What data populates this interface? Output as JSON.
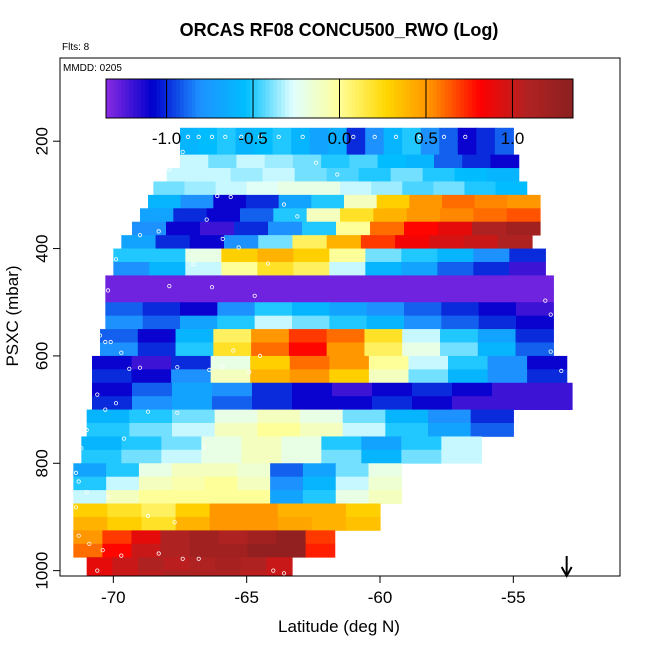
{
  "chart_data": {
    "type": "heatmap",
    "title": "ORCAS RF08 CONCU500_RWO (Log)",
    "flights_note": "Flts: 8",
    "date_note": "MMDD: 0205",
    "xlabel": "Latitude (deg N)",
    "ylabel": "PSXC (mbar)",
    "xlim": [
      -72,
      -51
    ],
    "ylim": [
      1010,
      45
    ],
    "x_ticks": [
      -70,
      -65,
      -60,
      -55
    ],
    "x_tick_labels": [
      "-70",
      "-65",
      "-60",
      "-55"
    ],
    "y_ticks": [
      200,
      400,
      600,
      800,
      1000
    ],
    "y_tick_labels": [
      "200",
      "400",
      "600",
      "800",
      "1000"
    ],
    "colorbar": {
      "range": [
        -1.35,
        1.35
      ],
      "ticks": [
        -1.0,
        -0.5,
        0.0,
        0.5,
        1.0
      ],
      "tick_labels": [
        "-1.0",
        "-0.5",
        "0.0",
        "0.5",
        "1.0"
      ],
      "colors": [
        "#8a2be2",
        "#0000cd",
        "#1e90ff",
        "#00bfff",
        "#e0ffff",
        "#ffff99",
        "#ffd700",
        "#ff8c00",
        "#ff0000",
        "#b22222",
        "#8b2020"
      ]
    },
    "pressure_bands": [
      {
        "p_top": 175,
        "p_bot": 225,
        "lat_start": -67.5,
        "lat_end": -55.0,
        "values": [
          -0.6,
          -0.55,
          -0.5,
          -0.6,
          -0.55,
          -0.5,
          -0.6,
          -0.7,
          -0.65,
          -1.0,
          -0.8,
          -0.6,
          -0.5,
          -0.8,
          -0.9,
          -1.1,
          -1.0,
          -0.9
        ]
      },
      {
        "p_top": 225,
        "p_bot": 250,
        "lat_start": -67.5,
        "lat_end": -54.8,
        "values": [
          -0.3,
          -0.4,
          -0.3,
          -0.35,
          -0.4,
          -0.5,
          -0.45,
          -0.55,
          -0.6,
          -0.9,
          -1.0,
          -1.1
        ]
      },
      {
        "p_top": 250,
        "p_bot": 275,
        "lat_start": -68.0,
        "lat_end": -54.8,
        "values": [
          -0.3,
          -0.3,
          -0.35,
          -0.3,
          -0.4,
          -0.45,
          -0.5,
          -0.4,
          -0.5,
          -0.55,
          -0.6
        ]
      },
      {
        "p_top": 275,
        "p_bot": 300,
        "lat_start": -68.5,
        "lat_end": -54.5,
        "values": [
          -0.4,
          -0.35,
          -0.3,
          -0.25,
          -0.2,
          -0.2,
          -0.3,
          -0.35,
          -0.45,
          -0.4,
          -0.5,
          -0.55
        ]
      },
      {
        "p_top": 300,
        "p_bot": 325,
        "lat_start": -68.7,
        "lat_end": -54.0,
        "values": [
          -0.6,
          -0.8,
          -1.1,
          -1.0,
          -0.7,
          -0.5,
          -0.1,
          0.3,
          0.5,
          0.6,
          0.55,
          0.5
        ]
      },
      {
        "p_top": 325,
        "p_bot": 350,
        "lat_start": -69.0,
        "lat_end": -54.0,
        "values": [
          -0.7,
          -1.0,
          -1.1,
          -0.9,
          -0.5,
          -0.1,
          0.2,
          0.4,
          0.5,
          0.55,
          0.6,
          0.65
        ]
      },
      {
        "p_top": 350,
        "p_bot": 375,
        "lat_start": -69.3,
        "lat_end": -54.0,
        "values": [
          -0.8,
          -1.1,
          -1.2,
          -1.0,
          -0.8,
          -0.5,
          0.0,
          0.6,
          0.8,
          0.9,
          1.1,
          1.2
        ]
      },
      {
        "p_top": 375,
        "p_bot": 400,
        "lat_start": -69.7,
        "lat_end": -54.3,
        "values": [
          -0.7,
          -1.0,
          -1.1,
          -0.8,
          -0.4,
          0.1,
          0.4,
          0.7,
          0.85,
          0.95,
          1.0,
          1.1
        ]
      },
      {
        "p_top": 400,
        "p_bot": 425,
        "lat_start": -70.0,
        "lat_end": -53.8,
        "values": [
          -0.5,
          -0.5,
          -0.2,
          0.3,
          0.4,
          0.3,
          0.0,
          -0.4,
          -0.5,
          -0.6,
          -0.8,
          -1.0
        ]
      },
      {
        "p_top": 425,
        "p_bot": 450,
        "lat_start": -70.0,
        "lat_end": -53.8,
        "values": [
          -0.8,
          -0.6,
          -0.3,
          0.0,
          0.2,
          0.1,
          -0.3,
          -0.6,
          -0.7,
          -0.9,
          -1.0,
          -1.2
        ]
      },
      {
        "p_top": 450,
        "p_bot": 475,
        "lat_start": -70.3,
        "lat_end": -53.5,
        "values": [
          -1.3,
          -1.3,
          -1.3,
          -1.3,
          -1.3,
          -1.3,
          -1.3,
          -1.3,
          -1.3,
          -1.3,
          -1.3,
          -1.3
        ]
      },
      {
        "p_top": 475,
        "p_bot": 500,
        "lat_start": -70.3,
        "lat_end": -53.5,
        "values": [
          -1.3,
          -1.3,
          -1.3,
          -1.3,
          -1.3,
          -1.3,
          -1.3,
          -1.3,
          -1.3,
          -1.3,
          -1.3,
          -1.3
        ]
      },
      {
        "p_top": 500,
        "p_bot": 525,
        "lat_start": -70.3,
        "lat_end": -53.5,
        "values": [
          -0.9,
          -1.0,
          -1.1,
          -0.8,
          -0.5,
          -0.6,
          -0.7,
          -0.8,
          -0.9,
          -1.0,
          -1.1,
          -1.2
        ]
      },
      {
        "p_top": 525,
        "p_bot": 550,
        "lat_start": -70.3,
        "lat_end": -53.5,
        "values": [
          -0.8,
          -0.9,
          -0.7,
          -0.5,
          -0.3,
          -0.4,
          -0.5,
          -0.6,
          -0.8,
          -0.9,
          -1.0,
          -1.1
        ]
      },
      {
        "p_top": 550,
        "p_bot": 575,
        "lat_start": -70.5,
        "lat_end": -53.5,
        "values": [
          -0.9,
          -1.1,
          -0.6,
          0.1,
          0.5,
          0.7,
          0.6,
          0.2,
          -0.3,
          -0.5,
          -0.7,
          -1.0
        ]
      },
      {
        "p_top": 575,
        "p_bot": 600,
        "lat_start": -70.5,
        "lat_end": -53.5,
        "values": [
          -0.8,
          -1.0,
          -0.5,
          0.2,
          0.6,
          0.8,
          0.5,
          0.1,
          -0.2,
          -0.4,
          -0.6,
          -0.9
        ]
      },
      {
        "p_top": 600,
        "p_bot": 625,
        "lat_start": -70.8,
        "lat_end": -53.0,
        "values": [
          -1.1,
          -1.2,
          -1.0,
          -0.2,
          0.3,
          0.6,
          0.5,
          0.0,
          -0.3,
          -0.5,
          -0.8,
          -1.1
        ]
      },
      {
        "p_top": 625,
        "p_bot": 650,
        "lat_start": -70.8,
        "lat_end": -53.0,
        "values": [
          -1.0,
          -1.1,
          -0.8,
          -0.1,
          0.4,
          0.5,
          0.3,
          -0.1,
          -0.4,
          -0.6,
          -0.8,
          -1.0
        ]
      },
      {
        "p_top": 650,
        "p_bot": 675,
        "lat_start": -70.8,
        "lat_end": -52.8,
        "values": [
          -1.1,
          -0.9,
          -0.7,
          -0.8,
          -1.0,
          -1.1,
          -1.2,
          -1.1,
          -1.0,
          -1.1,
          -1.2,
          -1.2
        ]
      },
      {
        "p_top": 675,
        "p_bot": 700,
        "lat_start": -70.8,
        "lat_end": -52.8,
        "values": [
          -1.0,
          -0.8,
          -0.7,
          -0.9,
          -1.0,
          -1.1,
          -1.1,
          -1.0,
          -1.1,
          -1.2,
          -1.2,
          -1.2
        ]
      },
      {
        "p_top": 700,
        "p_bot": 725,
        "lat_start": -71.0,
        "lat_end": -55.0,
        "values": [
          -0.6,
          -0.5,
          -0.4,
          -0.2,
          -0.1,
          -0.2,
          -0.4,
          -0.6,
          -0.8,
          -1.0
        ]
      },
      {
        "p_top": 725,
        "p_bot": 750,
        "lat_start": -71.0,
        "lat_end": -55.0,
        "values": [
          -0.5,
          -0.4,
          -0.3,
          -0.1,
          0.0,
          -0.1,
          -0.3,
          -0.5,
          -0.7,
          -0.9
        ]
      },
      {
        "p_top": 750,
        "p_bot": 775,
        "lat_start": -71.2,
        "lat_end": -56.2,
        "values": [
          -0.6,
          -0.5,
          -0.4,
          -0.2,
          -0.1,
          -0.2,
          -0.5,
          -0.7,
          -0.5,
          -0.3
        ]
      },
      {
        "p_top": 775,
        "p_bot": 800,
        "lat_start": -71.2,
        "lat_end": -56.2,
        "values": [
          -0.5,
          -0.4,
          -0.3,
          -0.2,
          -0.1,
          -0.2,
          -0.4,
          -0.6,
          -0.4,
          -0.3
        ]
      },
      {
        "p_top": 800,
        "p_bot": 825,
        "lat_start": -71.5,
        "lat_end": -59.2,
        "values": [
          -0.7,
          -0.5,
          -0.2,
          -0.1,
          -0.1,
          -0.15,
          -0.9,
          -0.7,
          -0.4,
          -0.2
        ]
      },
      {
        "p_top": 825,
        "p_bot": 850,
        "lat_start": -71.5,
        "lat_end": -59.2,
        "values": [
          -0.5,
          -0.3,
          -0.1,
          -0.05,
          0.0,
          -0.1,
          -0.8,
          -0.6,
          -0.3,
          -0.15
        ]
      },
      {
        "p_top": 850,
        "p_bot": 875,
        "lat_start": -71.5,
        "lat_end": -59.2,
        "values": [
          -0.3,
          -0.1,
          0.0,
          0.0,
          0.0,
          0.0,
          -0.7,
          -0.5,
          -0.2,
          -0.1
        ]
      },
      {
        "p_top": 875,
        "p_bot": 900,
        "lat_start": -71.5,
        "lat_end": -60.0,
        "values": [
          0.3,
          0.2,
          0.1,
          0.3,
          0.5,
          0.5,
          0.4,
          0.4,
          0.3
        ]
      },
      {
        "p_top": 900,
        "p_bot": 925,
        "lat_start": -71.5,
        "lat_end": -60.0,
        "values": [
          0.4,
          0.3,
          0.2,
          0.4,
          0.5,
          0.5,
          0.45,
          0.4,
          0.35
        ]
      },
      {
        "p_top": 925,
        "p_bot": 950,
        "lat_start": -71.5,
        "lat_end": -61.7,
        "values": [
          0.5,
          0.7,
          0.9,
          1.1,
          1.2,
          1.1,
          1.2,
          1.3,
          0.7
        ]
      },
      {
        "p_top": 950,
        "p_bot": 975,
        "lat_start": -71.5,
        "lat_end": -61.7,
        "values": [
          0.6,
          0.8,
          1.0,
          1.1,
          1.2,
          1.2,
          1.3,
          1.3,
          0.75
        ]
      },
      {
        "p_top": 975,
        "p_bot": 1000,
        "lat_start": -71.0,
        "lat_end": -63.3,
        "values": [
          0.9,
          1.0,
          1.1,
          1.05,
          1.1,
          1.15,
          1.1,
          1.0
        ]
      },
      {
        "p_top": 1000,
        "p_bot": 1010,
        "lat_start": -71.0,
        "lat_end": -63.3,
        "values": [
          0.9,
          1.0,
          1.05,
          1.1,
          1.1,
          1.1,
          1.05,
          1.0
        ]
      }
    ],
    "sample_points": [
      {
        "lat": -67.2,
        "p": 192
      },
      {
        "lat": -66.8,
        "p": 192
      },
      {
        "lat": -66.3,
        "p": 192
      },
      {
        "lat": -65.8,
        "p": 192
      },
      {
        "lat": -65.2,
        "p": 192
      },
      {
        "lat": -64.5,
        "p": 192
      },
      {
        "lat": -63.8,
        "p": 192
      },
      {
        "lat": -62.9,
        "p": 192
      },
      {
        "lat": -61.0,
        "p": 192
      },
      {
        "lat": -60.2,
        "p": 192
      },
      {
        "lat": -59.4,
        "p": 192
      },
      {
        "lat": -58.5,
        "p": 192
      },
      {
        "lat": -57.6,
        "p": 192
      },
      {
        "lat": -56.8,
        "p": 192
      },
      {
        "lat": -67.4,
        "p": 220
      },
      {
        "lat": -67.9,
        "p": 252
      },
      {
        "lat": -62.4,
        "p": 240
      },
      {
        "lat": -61.6,
        "p": 262
      },
      {
        "lat": -68.6,
        "p": 292
      },
      {
        "lat": -66.1,
        "p": 302
      },
      {
        "lat": -65.6,
        "p": 304
      },
      {
        "lat": -63.6,
        "p": 318
      },
      {
        "lat": -63.1,
        "p": 340
      },
      {
        "lat": -69.0,
        "p": 375
      },
      {
        "lat": -68.3,
        "p": 368
      },
      {
        "lat": -66.5,
        "p": 346
      },
      {
        "lat": -65.3,
        "p": 398
      },
      {
        "lat": -65.9,
        "p": 382
      },
      {
        "lat": -69.9,
        "p": 420
      },
      {
        "lat": -70.1,
        "p": 432
      },
      {
        "lat": -67.0,
        "p": 429
      },
      {
        "lat": -64.2,
        "p": 428
      },
      {
        "lat": -70.2,
        "p": 478
      },
      {
        "lat": -67.9,
        "p": 470
      },
      {
        "lat": -66.3,
        "p": 472
      },
      {
        "lat": -64.7,
        "p": 488
      },
      {
        "lat": -53.8,
        "p": 497
      },
      {
        "lat": -53.6,
        "p": 523
      },
      {
        "lat": -70.5,
        "p": 562
      },
      {
        "lat": -70.3,
        "p": 574
      },
      {
        "lat": -70.1,
        "p": 574
      },
      {
        "lat": -69.7,
        "p": 594
      },
      {
        "lat": -69.4,
        "p": 624
      },
      {
        "lat": -69.0,
        "p": 622
      },
      {
        "lat": -67.6,
        "p": 621
      },
      {
        "lat": -66.4,
        "p": 626
      },
      {
        "lat": -65.9,
        "p": 620
      },
      {
        "lat": -65.5,
        "p": 590
      },
      {
        "lat": -64.9,
        "p": 630
      },
      {
        "lat": -64.5,
        "p": 600
      },
      {
        "lat": -53.4,
        "p": 556
      },
      {
        "lat": -53.6,
        "p": 592
      },
      {
        "lat": -53.2,
        "p": 628
      },
      {
        "lat": -70.6,
        "p": 672
      },
      {
        "lat": -69.9,
        "p": 688
      },
      {
        "lat": -70.3,
        "p": 700
      },
      {
        "lat": -68.7,
        "p": 704
      },
      {
        "lat": -67.6,
        "p": 706
      },
      {
        "lat": -71.0,
        "p": 738
      },
      {
        "lat": -71.2,
        "p": 772
      },
      {
        "lat": -69.6,
        "p": 754
      },
      {
        "lat": -66.6,
        "p": 770
      },
      {
        "lat": -71.4,
        "p": 818
      },
      {
        "lat": -71.3,
        "p": 834
      },
      {
        "lat": -71.0,
        "p": 854
      },
      {
        "lat": -70.2,
        "p": 862
      },
      {
        "lat": -71.4,
        "p": 882
      },
      {
        "lat": -68.7,
        "p": 898
      },
      {
        "lat": -67.7,
        "p": 910
      },
      {
        "lat": -71.3,
        "p": 935
      },
      {
        "lat": -70.9,
        "p": 950
      },
      {
        "lat": -70.4,
        "p": 962
      },
      {
        "lat": -69.7,
        "p": 972
      },
      {
        "lat": -68.3,
        "p": 968
      },
      {
        "lat": -67.4,
        "p": 978
      },
      {
        "lat": -66.8,
        "p": 978
      },
      {
        "lat": -71.1,
        "p": 990
      },
      {
        "lat": -70.6,
        "p": 1000
      },
      {
        "lat": -64.0,
        "p": 1000
      },
      {
        "lat": -63.6,
        "p": 1005
      }
    ],
    "arrow_marker_lat": -53.0
  }
}
